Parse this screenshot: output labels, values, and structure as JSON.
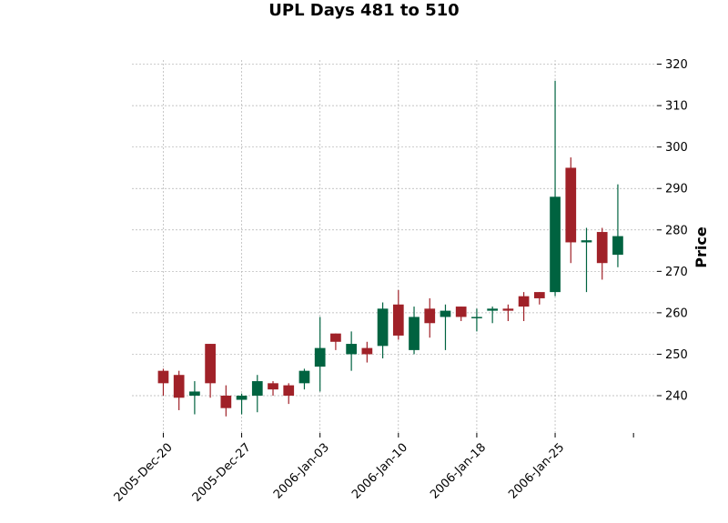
{
  "chart_data": {
    "type": "candlestick",
    "title": "UPL Days 481 to 510",
    "ylabel": "Price",
    "xlabel": "",
    "ylim": [
      231,
      321
    ],
    "yticks": [
      240,
      250,
      260,
      270,
      280,
      290,
      300,
      310,
      320
    ],
    "xtick_labels": [
      "2005-Dec-20",
      "2005-Dec-27",
      "2006-Jan-03",
      "2006-Jan-10",
      "2006-Jan-18",
      "2006-Jan-25"
    ],
    "xtick_positions": [
      0,
      5,
      10,
      15,
      20,
      25,
      30
    ],
    "grid": true,
    "colors": {
      "up": "#006340",
      "down": "#a02128",
      "grid": "#b0b0b0"
    },
    "candles": [
      {
        "open": 246.0,
        "high": 246.5,
        "low": 240.0,
        "close": 243.0
      },
      {
        "open": 245.0,
        "high": 246.0,
        "low": 236.5,
        "close": 239.5
      },
      {
        "open": 240.0,
        "high": 243.5,
        "low": 235.5,
        "close": 241.0
      },
      {
        "open": 252.5,
        "high": 252.5,
        "low": 239.5,
        "close": 243.0
      },
      {
        "open": 240.0,
        "high": 242.5,
        "low": 235.0,
        "close": 237.0
      },
      {
        "open": 239.0,
        "high": 240.5,
        "low": 235.5,
        "close": 240.0
      },
      {
        "open": 240.0,
        "high": 245.0,
        "low": 236.0,
        "close": 243.5
      },
      {
        "open": 243.0,
        "high": 243.5,
        "low": 240.0,
        "close": 241.5
      },
      {
        "open": 242.5,
        "high": 243.0,
        "low": 238.0,
        "close": 240.0
      },
      {
        "open": 243.0,
        "high": 246.5,
        "low": 241.5,
        "close": 246.0
      },
      {
        "open": 247.0,
        "high": 259.0,
        "low": 241.0,
        "close": 251.5
      },
      {
        "open": 255.0,
        "high": 255.0,
        "low": 251.0,
        "close": 253.0
      },
      {
        "open": 250.0,
        "high": 255.5,
        "low": 246.0,
        "close": 252.5
      },
      {
        "open": 251.5,
        "high": 253.0,
        "low": 248.0,
        "close": 250.0
      },
      {
        "open": 252.0,
        "high": 262.5,
        "low": 249.0,
        "close": 261.0
      },
      {
        "open": 262.0,
        "high": 265.5,
        "low": 253.5,
        "close": 254.5
      },
      {
        "open": 251.0,
        "high": 261.5,
        "low": 250.0,
        "close": 259.0
      },
      {
        "open": 261.0,
        "high": 263.5,
        "low": 254.0,
        "close": 257.5
      },
      {
        "open": 259.0,
        "high": 262.0,
        "low": 251.0,
        "close": 260.5
      },
      {
        "open": 261.5,
        "high": 261.5,
        "low": 258.0,
        "close": 259.0
      },
      {
        "open": 259.0,
        "high": 261.0,
        "low": 255.5,
        "close": 259.0
      },
      {
        "open": 260.5,
        "high": 261.5,
        "low": 257.5,
        "close": 261.0
      },
      {
        "open": 261.0,
        "high": 262.0,
        "low": 258.0,
        "close": 260.5
      },
      {
        "open": 264.0,
        "high": 265.0,
        "low": 258.0,
        "close": 261.5
      },
      {
        "open": 265.0,
        "high": 265.0,
        "low": 262.0,
        "close": 263.5
      },
      {
        "open": 265.0,
        "high": 316.0,
        "low": 264.0,
        "close": 288.0
      },
      {
        "open": 295.0,
        "high": 297.5,
        "low": 272.0,
        "close": 277.0
      },
      {
        "open": 277.0,
        "high": 280.5,
        "low": 265.0,
        "close": 277.5
      },
      {
        "open": 279.5,
        "high": 280.5,
        "low": 268.0,
        "close": 272.0
      },
      {
        "open": 274.0,
        "high": 291.0,
        "low": 271.0,
        "close": 278.5
      }
    ]
  }
}
